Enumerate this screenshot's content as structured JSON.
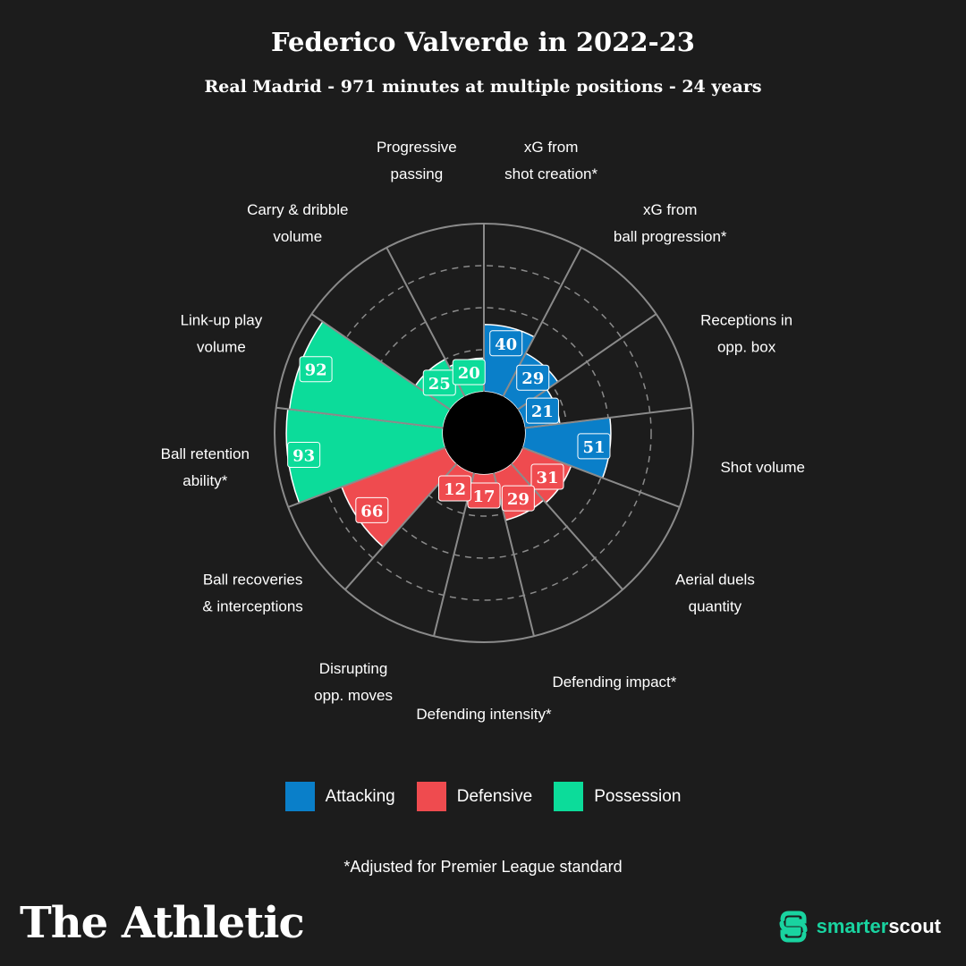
{
  "header": {
    "title": "Federico Valverde in 2022-23",
    "subtitle": "Real Madrid - 971 minutes at multiple positions - 24 years"
  },
  "colors": {
    "attacking": "#0a7fc9",
    "defensive": "#ef4b4f",
    "possession": "#0cdc9a",
    "background": "#1c1c1c",
    "grid": "#8a8a8a"
  },
  "chart_data": {
    "type": "polar-bar",
    "title": "Federico Valverde in 2022-23",
    "subtitle": "Real Madrid - 971 minutes at multiple positions - 24 years",
    "rlim": [
      0,
      100
    ],
    "gridlines": [
      25,
      50,
      75
    ],
    "categories": [
      {
        "label": [
          "xG from",
          "shot creation*"
        ],
        "value": 40,
        "group": "attacking"
      },
      {
        "label": [
          "xG from",
          "ball progression*"
        ],
        "value": 29,
        "group": "attacking"
      },
      {
        "label": [
          "Receptions in",
          "opp. box"
        ],
        "value": 21,
        "group": "attacking"
      },
      {
        "label": [
          "Shot volume"
        ],
        "value": 51,
        "group": "attacking"
      },
      {
        "label": [
          "Aerial duels",
          "quantity"
        ],
        "value": 31,
        "group": "defensive"
      },
      {
        "label": [
          "Defending impact*"
        ],
        "value": 29,
        "group": "defensive"
      },
      {
        "label": [
          "Defending intensity*"
        ],
        "value": 17,
        "group": "defensive"
      },
      {
        "label": [
          "Disrupting",
          "opp. moves"
        ],
        "value": 12,
        "group": "defensive"
      },
      {
        "label": [
          "Ball recoveries",
          "& interceptions"
        ],
        "value": 66,
        "group": "defensive"
      },
      {
        "label": [
          "Ball retention",
          "ability*"
        ],
        "value": 93,
        "group": "possession"
      },
      {
        "label": [
          "Link-up play",
          "volume"
        ],
        "value": 92,
        "group": "possession"
      },
      {
        "label": [
          "Carry & dribble",
          "volume"
        ],
        "value": 25,
        "group": "possession"
      },
      {
        "label": [
          "Progressive",
          "passing"
        ],
        "value": 20,
        "group": "possession"
      }
    ]
  },
  "legend": {
    "attacking": "Attacking",
    "defensive": "Defensive",
    "possession": "Possession"
  },
  "footnote": "*Adjusted for Premier League standard",
  "branding": {
    "publisher": "The Athletic",
    "partner_part1": "smarter",
    "partner_part2": "scout"
  }
}
